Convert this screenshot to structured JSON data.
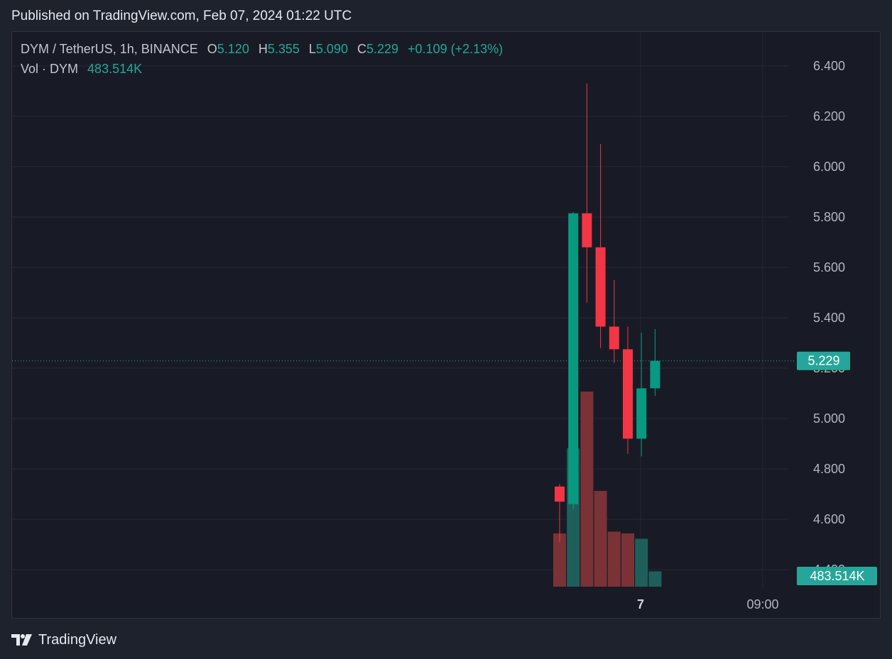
{
  "header": {
    "published": "Published on TradingView.com, Feb 07, 2024 01:22 UTC"
  },
  "legend": {
    "symbol": "DYM / TetherUS, 1h, BINANCE",
    "o_label": "O",
    "o_value": "5.120",
    "h_label": "H",
    "h_value": "5.355",
    "l_label": "L",
    "l_value": "5.090",
    "c_label": "C",
    "c_value": "5.229",
    "change": "+0.109 (+2.13%)",
    "vol_label": "Vol · DYM",
    "vol_value": "483.514K"
  },
  "footer": {
    "brand": "TradingView"
  },
  "colors": {
    "up": "#089981",
    "down": "#f23645",
    "vol_up": "#1f5f5b",
    "vol_down": "#7a3236",
    "badge": "#26a69a"
  },
  "chart_data": {
    "type": "candlestick",
    "symbol": "DYM / TetherUS",
    "interval": "1h",
    "exchange": "BINANCE",
    "yaxis": {
      "range": [
        4.34,
        6.48
      ],
      "ticks": [
        "6.400",
        "6.200",
        "6.000",
        "5.800",
        "5.600",
        "5.400",
        "5.200",
        "5.000",
        "4.800",
        "4.600",
        "4.400"
      ]
    },
    "xaxis": {
      "ticks": [
        "7",
        "09:00"
      ]
    },
    "last_price": "5.229",
    "last_volume": "483.514K",
    "candles": [
      {
        "o": 4.73,
        "h": 4.74,
        "l": 4.51,
        "c": 4.67,
        "vol": 1.5
      },
      {
        "o": 4.66,
        "h": 5.82,
        "l": 4.64,
        "c": 5.815,
        "vol": 3.9
      },
      {
        "o": 5.815,
        "h": 6.33,
        "l": 5.46,
        "c": 5.68,
        "vol": 5.5
      },
      {
        "o": 5.68,
        "h": 6.09,
        "l": 5.28,
        "c": 5.365,
        "vol": 2.7
      },
      {
        "o": 5.365,
        "h": 5.55,
        "l": 5.22,
        "c": 5.275,
        "vol": 1.55
      },
      {
        "o": 5.275,
        "h": 5.365,
        "l": 4.86,
        "c": 4.92,
        "vol": 1.5
      },
      {
        "o": 4.92,
        "h": 5.34,
        "l": 4.85,
        "c": 5.12,
        "vol": 1.35
      },
      {
        "o": 5.12,
        "h": 5.355,
        "l": 5.09,
        "c": 5.229,
        "vol": 0.43
      }
    ]
  }
}
